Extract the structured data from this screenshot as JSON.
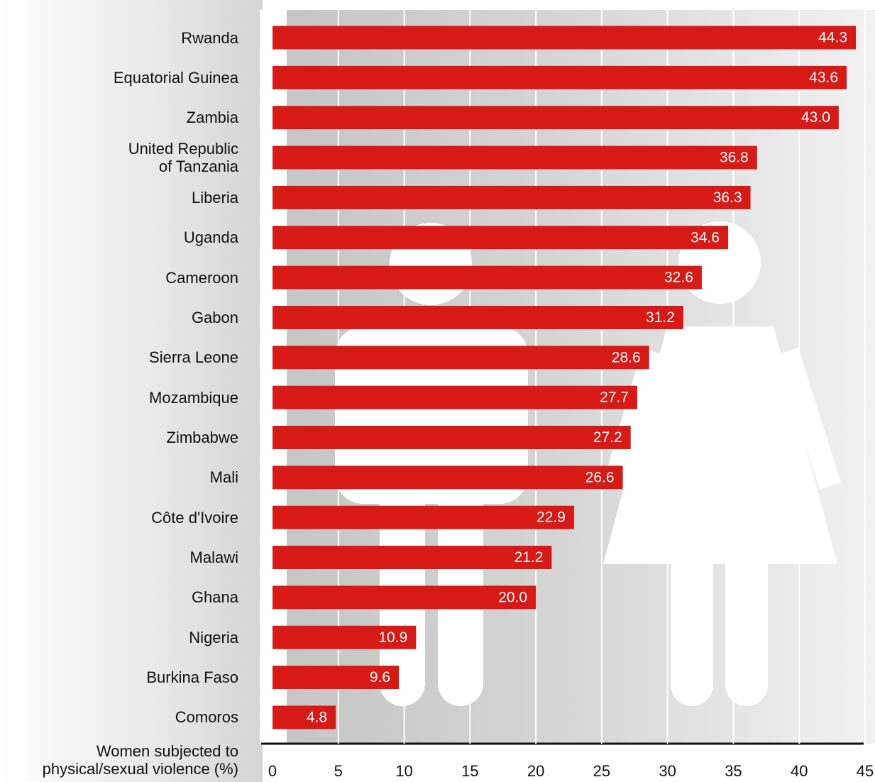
{
  "chart_data": {
    "type": "hbar",
    "categories": [
      "Rwanda",
      "Equatorial Guinea",
      "Zambia",
      "United Republic\nof Tanzania",
      "Liberia",
      "Uganda",
      "Cameroon",
      "Gabon",
      "Sierra Leone",
      "Mozambique",
      "Zimbabwe",
      "Mali",
      "Côte d'Ivoire",
      "Malawi",
      "Ghana",
      "Nigeria",
      "Burkina Faso",
      "Comoros"
    ],
    "values": [
      44.3,
      43.6,
      43.0,
      36.8,
      36.3,
      34.6,
      32.6,
      31.2,
      28.6,
      27.7,
      27.2,
      26.6,
      22.9,
      21.2,
      20.0,
      10.9,
      9.6,
      4.8
    ],
    "value_labels": [
      "44.3",
      "43.6",
      "43.0",
      "36.8",
      "36.3",
      "34.6",
      "32.6",
      "31.2",
      "28.6",
      "27.7",
      "27.2",
      "26.6",
      "22.9",
      "21.2",
      "20.0",
      "10.9",
      "9.6",
      "4.8"
    ],
    "color": "#d71a15",
    "xlabel": "Women subjected to\nphysical/sexual violence (%)",
    "xlim": [
      0,
      45
    ],
    "xticks": [
      0,
      5,
      10,
      15,
      20,
      25,
      30,
      35,
      40,
      45
    ],
    "grid": true
  }
}
